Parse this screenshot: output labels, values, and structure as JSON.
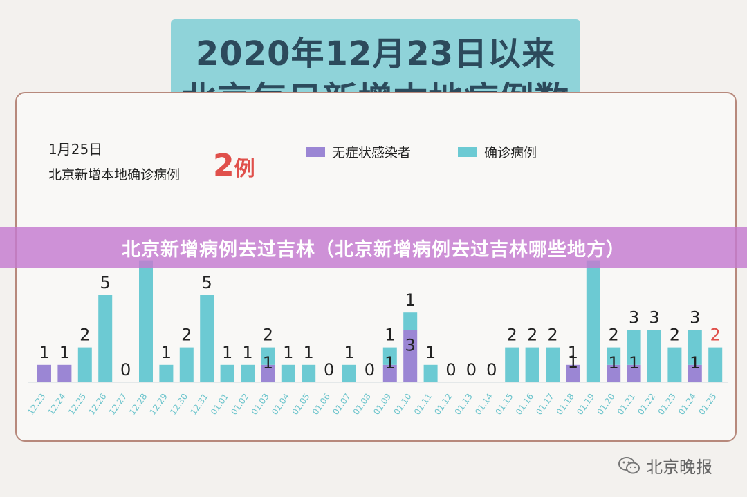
{
  "header": {
    "line1": "2020年12月23日以来",
    "line2": "北京每日新增本地病例数"
  },
  "summary": {
    "date": "1月25日",
    "label": "北京新增本地确诊病例",
    "count": "2",
    "unit": "例"
  },
  "banner": {
    "text": "北京新增病例去过吉林（北京新增病例去过吉林哪些地方）"
  },
  "watermark": {
    "text": "北京晚报"
  },
  "colors": {
    "asymptomatic": "#9b86d4",
    "confirmed": "#6ccad3",
    "highlight": "#e0504b"
  },
  "chart_data": {
    "type": "bar",
    "stacked": true,
    "legend_position": "top-right",
    "categories": [
      "12.23",
      "12.24",
      "12.25",
      "12.26",
      "12.27",
      "12.28",
      "12.29",
      "12.30",
      "12.31",
      "01.01",
      "01.02",
      "01.03",
      "01.04",
      "01.05",
      "01.06",
      "01.07",
      "01.08",
      "01.09",
      "01.10",
      "01.11",
      "01.12",
      "01.13",
      "01.14",
      "01.15",
      "01.16",
      "01.17",
      "01.18",
      "01.19",
      "01.20",
      "01.21",
      "01.22",
      "01.23",
      "01.24",
      "01.25"
    ],
    "series": [
      {
        "name": "无症状感染者",
        "values": [
          1,
          1,
          0,
          0,
          0,
          0,
          0,
          0,
          0,
          0,
          0,
          1,
          0,
          0,
          0,
          0,
          0,
          1,
          3,
          0,
          0,
          0,
          0,
          0,
          0,
          0,
          1,
          0,
          1,
          1,
          0,
          0,
          1,
          0
        ]
      },
      {
        "name": "确诊病例",
        "values": [
          0,
          0,
          2,
          5,
          0,
          7,
          1,
          2,
          5,
          1,
          1,
          1,
          1,
          1,
          0,
          1,
          0,
          1,
          1,
          1,
          0,
          0,
          0,
          2,
          2,
          2,
          0,
          7,
          1,
          2,
          3,
          2,
          2,
          2
        ]
      }
    ],
    "labels": [
      [
        "1"
      ],
      [
        "1"
      ],
      [
        "2"
      ],
      [
        "5"
      ],
      [
        "0"
      ],
      [],
      [
        "1"
      ],
      [
        "2"
      ],
      [
        "5"
      ],
      [
        "1"
      ],
      [
        "1"
      ],
      [
        "2",
        "1"
      ],
      [
        "1"
      ],
      [
        "1"
      ],
      [
        "0"
      ],
      [
        "1"
      ],
      [
        "0"
      ],
      [
        "1",
        "1"
      ],
      [
        "1",
        "3"
      ],
      [
        "1"
      ],
      [
        "0"
      ],
      [
        "0"
      ],
      [
        "0"
      ],
      [
        "2"
      ],
      [
        "2"
      ],
      [
        "2"
      ],
      [
        "1",
        "1"
      ],
      [],
      [
        "2",
        "1"
      ],
      [
        "3",
        "1"
      ],
      [
        "3"
      ],
      [
        "2"
      ],
      [
        "3",
        "1"
      ],
      [
        "2"
      ]
    ],
    "ylim": [
      0,
      7
    ]
  }
}
